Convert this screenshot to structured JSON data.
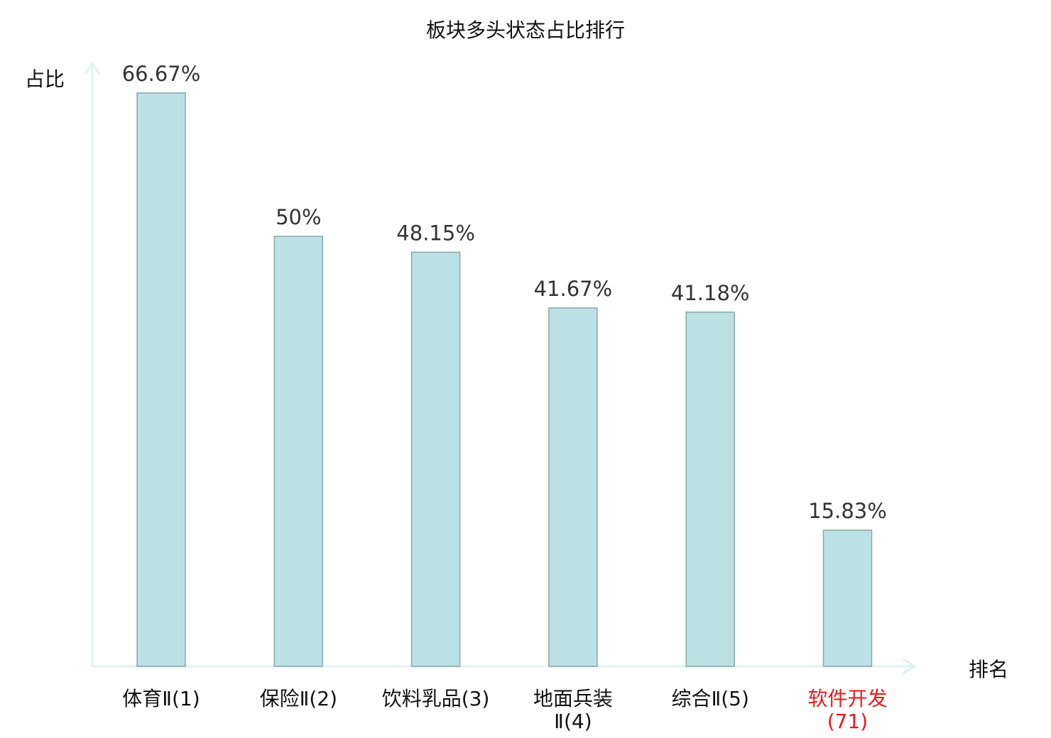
{
  "chart_data": {
    "type": "bar",
    "title": "板块多头状态占比排行",
    "xlabel": "排名",
    "ylabel": "占比",
    "categories": [
      "体育Ⅱ(1)",
      "保险Ⅱ(2)",
      "饮料乳品(3)",
      "地面兵装Ⅱ(4)",
      "综合Ⅱ(5)",
      "软件开发(71)"
    ],
    "values": [
      66.67,
      50,
      48.15,
      41.67,
      41.18,
      15.83
    ],
    "data_labels": [
      "66.67%",
      "50%",
      "48.15%",
      "41.67%",
      "41.18%",
      "15.83%"
    ],
    "highlight_index": 5,
    "ylim": [
      0,
      70
    ],
    "grid": false,
    "colors": {
      "bar_fill": "#bce1e4",
      "bar_stroke": "#8aa8aa",
      "axis": "#dff2f0",
      "text": "#333333",
      "highlight": "#e8191e"
    }
  }
}
